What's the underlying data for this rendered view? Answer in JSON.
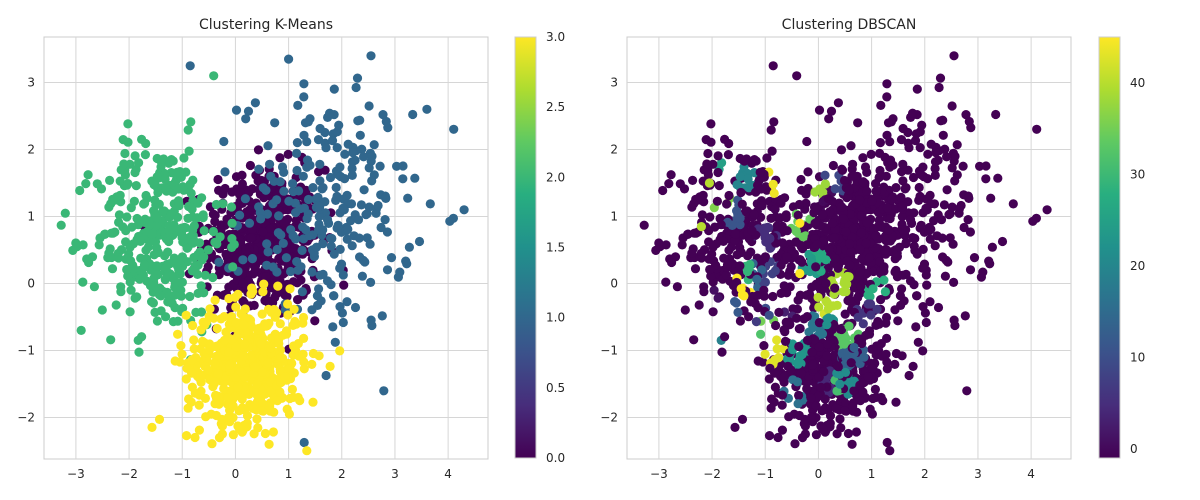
{
  "chart_data": [
    {
      "type": "scatter",
      "title": "Clustering K-Means",
      "xlabel": "",
      "ylabel": "",
      "xlim": [
        -3.6,
        4.75
      ],
      "ylim": [
        -2.62,
        3.68
      ],
      "x_ticks": [
        -3,
        -2,
        -1,
        0,
        1,
        2,
        3,
        4
      ],
      "y_ticks": [
        -2,
        -1,
        0,
        1,
        2,
        3
      ],
      "grid": true,
      "colormap": "viridis",
      "colorbar": {
        "range": [
          0,
          3
        ],
        "ticks": [
          0.0,
          0.5,
          1.0,
          1.5,
          2.0,
          2.5,
          3.0
        ],
        "tick_format": "0.0"
      },
      "clusters": [
        {
          "label": 0,
          "center": [
            0.5,
            0.6
          ],
          "spread": [
            0.55,
            0.55
          ],
          "count": 500,
          "color": "#440154"
        },
        {
          "label": 1,
          "center": [
            1.7,
            1.1
          ],
          "spread": [
            0.8,
            0.9
          ],
          "count": 260,
          "color": "#31688e"
        },
        {
          "label": 2,
          "center": [
            -1.4,
            0.7
          ],
          "spread": [
            0.6,
            0.7
          ],
          "count": 360,
          "color": "#35b779"
        },
        {
          "label": 3,
          "center": [
            0.2,
            -1.2
          ],
          "spread": [
            0.55,
            0.45
          ],
          "count": 520,
          "color": "#fde725"
        }
      ],
      "highlight_points": [
        {
          "x": 4.3,
          "y": 1.1,
          "label": 1
        },
        {
          "x": -0.85,
          "y": 3.25,
          "label": 1
        },
        {
          "x": 2.55,
          "y": 3.4,
          "label": 1
        },
        {
          "x": 1.0,
          "y": 3.35,
          "label": 1
        },
        {
          "x": -2.9,
          "y": -0.7,
          "label": 2
        },
        {
          "x": -3.2,
          "y": 1.05,
          "label": 2
        },
        {
          "x": 3.6,
          "y": 2.6,
          "label": 1
        },
        {
          "x": -0.3,
          "y": -2.3,
          "label": 3
        }
      ]
    },
    {
      "type": "scatter",
      "title": "Clustering DBSCAN",
      "xlabel": "",
      "ylabel": "",
      "xlim": [
        -3.6,
        4.75
      ],
      "ylim": [
        -2.62,
        3.68
      ],
      "x_ticks": [
        -3,
        -2,
        -1,
        0,
        1,
        2,
        3,
        4
      ],
      "y_ticks": [
        -2,
        -1,
        0,
        1,
        2,
        3
      ],
      "grid": true,
      "colormap": "viridis",
      "colorbar": {
        "range": [
          -1,
          45
        ],
        "ticks": [
          0,
          10,
          20,
          30,
          40
        ],
        "tick_format": "0"
      },
      "noise_label": -1,
      "cluster_label_range": [
        0,
        45
      ],
      "highlight_points": [
        {
          "x": 4.3,
          "y": 1.1,
          "label": -1
        },
        {
          "x": -0.85,
          "y": 3.25,
          "label": -1
        },
        {
          "x": 2.55,
          "y": 3.4,
          "label": -1
        },
        {
          "x": -2.05,
          "y": 1.5,
          "label": 40
        },
        {
          "x": -2.2,
          "y": 0.85,
          "label": 40
        },
        {
          "x": -0.35,
          "y": 0.9,
          "label": 45
        },
        {
          "x": -0.35,
          "y": 0.15,
          "label": 45
        },
        {
          "x": -0.3,
          "y": -2.3,
          "label": -1
        }
      ]
    }
  ]
}
